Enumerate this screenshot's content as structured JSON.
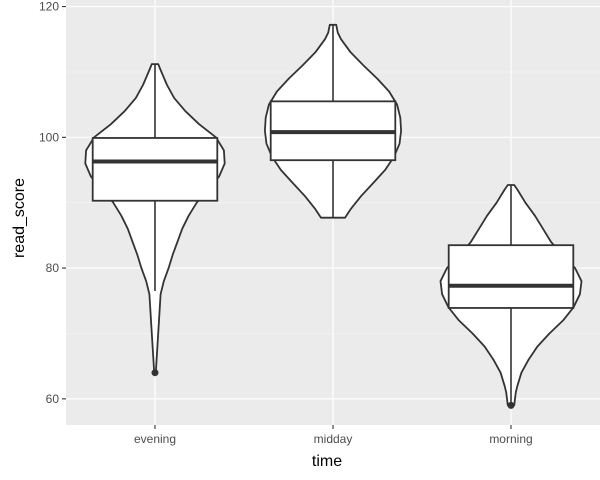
{
  "chart_data": {
    "type": "violin",
    "title": "",
    "xlabel": "time",
    "ylabel": "read_score",
    "categories": [
      "evening",
      "midday",
      "morning"
    ],
    "ylim": [
      56,
      121
    ],
    "yticks": [
      60,
      80,
      100,
      120
    ],
    "grid": true,
    "legend": "none",
    "colors": {
      "panel_background": "#ebebeb",
      "grid_major": "#ffffff",
      "grid_minor": "#f5f5f5",
      "violin_fill": "#ffffff",
      "outline": "#333333",
      "median_line": "#333333"
    },
    "series": [
      {
        "category": "evening",
        "box": {
          "min": 76.5,
          "q1": 90.3,
          "median": 96.3,
          "q3": 99.9,
          "max": 111.2
        },
        "outliers": [
          64
        ],
        "violin_range": [
          64,
          111.2
        ],
        "violin_width_at": [
          [
            64,
            0.01
          ],
          [
            66,
            0.02
          ],
          [
            68,
            0.03
          ],
          [
            70,
            0.04
          ],
          [
            72,
            0.05
          ],
          [
            74,
            0.06
          ],
          [
            76,
            0.07
          ],
          [
            78,
            0.11
          ],
          [
            80,
            0.17
          ],
          [
            82,
            0.22
          ],
          [
            84,
            0.28
          ],
          [
            86,
            0.34
          ],
          [
            88,
            0.42
          ],
          [
            90,
            0.52
          ],
          [
            92,
            0.66
          ],
          [
            94,
            0.8
          ],
          [
            96,
            0.87
          ],
          [
            98,
            0.86
          ],
          [
            100,
            0.76
          ],
          [
            102,
            0.55
          ],
          [
            104,
            0.38
          ],
          [
            106,
            0.24
          ],
          [
            108,
            0.15
          ],
          [
            110,
            0.08
          ],
          [
            111.2,
            0.04
          ]
        ]
      },
      {
        "category": "midday",
        "box": {
          "min": 87.7,
          "q1": 96.5,
          "median": 100.8,
          "q3": 105.5,
          "max": 117.2
        },
        "outliers": [],
        "violin_range": [
          87.7,
          117.2
        ],
        "violin_width_at": [
          [
            87.7,
            0.15
          ],
          [
            89,
            0.22
          ],
          [
            91,
            0.35
          ],
          [
            93,
            0.5
          ],
          [
            95,
            0.65
          ],
          [
            97,
            0.76
          ],
          [
            99,
            0.83
          ],
          [
            101,
            0.85
          ],
          [
            103,
            0.84
          ],
          [
            105,
            0.8
          ],
          [
            107,
            0.7
          ],
          [
            109,
            0.55
          ],
          [
            111,
            0.38
          ],
          [
            113,
            0.22
          ],
          [
            115,
            0.1
          ],
          [
            116,
            0.06
          ],
          [
            117.2,
            0.04
          ]
        ]
      },
      {
        "category": "morning",
        "box": {
          "min": 59,
          "q1": 73.9,
          "median": 77.3,
          "q3": 83.5,
          "max": 92.7
        },
        "outliers": [
          59
        ],
        "violin_range": [
          59,
          92.7
        ],
        "violin_width_at": [
          [
            59,
            0.04
          ],
          [
            60,
            0.05
          ],
          [
            61,
            0.06
          ],
          [
            62,
            0.08
          ],
          [
            64,
            0.13
          ],
          [
            66,
            0.22
          ],
          [
            68,
            0.33
          ],
          [
            70,
            0.48
          ],
          [
            72,
            0.65
          ],
          [
            74,
            0.78
          ],
          [
            76,
            0.86
          ],
          [
            78,
            0.88
          ],
          [
            80,
            0.8
          ],
          [
            82,
            0.64
          ],
          [
            84,
            0.5
          ],
          [
            86,
            0.4
          ],
          [
            88,
            0.3
          ],
          [
            90,
            0.18
          ],
          [
            92,
            0.08
          ],
          [
            92.7,
            0.04
          ]
        ]
      }
    ]
  }
}
